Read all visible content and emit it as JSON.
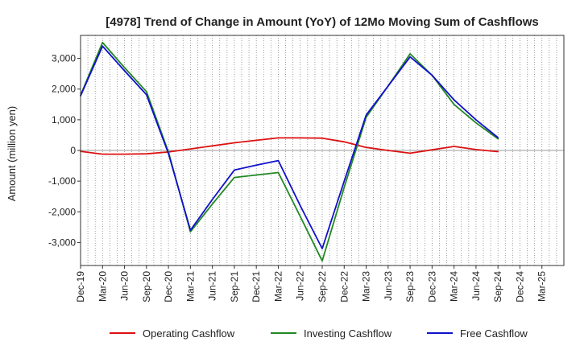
{
  "chart_data": {
    "type": "line",
    "title": "[4978]  Trend of Change in Amount (YoY) of 12Mo Moving Sum of Cashflows",
    "xlabel": "",
    "ylabel": "Amount (million yen)",
    "ylim": [
      -3750,
      3750
    ],
    "yticks": [
      -3000,
      -2000,
      -1000,
      0,
      1000,
      2000,
      3000
    ],
    "ytick_labels": [
      "-3,000",
      "-2,000",
      "-1,000",
      "0",
      "1,000",
      "2,000",
      "3,000"
    ],
    "x_months": 66,
    "x_ticks": [
      {
        "label": "Dec-19",
        "month": 0
      },
      {
        "label": "Mar-20",
        "month": 3
      },
      {
        "label": "Jun-20",
        "month": 6
      },
      {
        "label": "Sep-20",
        "month": 9
      },
      {
        "label": "Dec-20",
        "month": 12
      },
      {
        "label": "Mar-21",
        "month": 15
      },
      {
        "label": "Jun-21",
        "month": 18
      },
      {
        "label": "Sep-21",
        "month": 21
      },
      {
        "label": "Dec-21",
        "month": 24
      },
      {
        "label": "Mar-22",
        "month": 27
      },
      {
        "label": "Jun-22",
        "month": 30
      },
      {
        "label": "Sep-22",
        "month": 33
      },
      {
        "label": "Dec-22",
        "month": 36
      },
      {
        "label": "Mar-23",
        "month": 39
      },
      {
        "label": "Jun-23",
        "month": 42
      },
      {
        "label": "Sep-23",
        "month": 45
      },
      {
        "label": "Dec-23",
        "month": 48
      },
      {
        "label": "Mar-24",
        "month": 51
      },
      {
        "label": "Jun-24",
        "month": 54
      },
      {
        "label": "Sep-24",
        "month": 57
      },
      {
        "label": "Dec-24",
        "month": 60
      },
      {
        "label": "Mar-25",
        "month": 63
      }
    ],
    "grid": "vertical-dotted-monthly",
    "zero_line": true,
    "series": [
      {
        "name": "Operating Cashflow",
        "color": "#dd1111",
        "points": [
          [
            0,
            -30
          ],
          [
            3,
            -120
          ],
          [
            6,
            -120
          ],
          [
            9,
            -110
          ],
          [
            12,
            -50
          ],
          [
            15,
            50
          ],
          [
            18,
            150
          ],
          [
            21,
            250
          ],
          [
            24,
            330
          ],
          [
            27,
            410
          ],
          [
            30,
            410
          ],
          [
            33,
            400
          ],
          [
            36,
            280
          ],
          [
            39,
            100
          ],
          [
            42,
            0
          ],
          [
            45,
            -90
          ],
          [
            48,
            20
          ],
          [
            51,
            130
          ],
          [
            54,
            30
          ],
          [
            57,
            -40
          ]
        ]
      },
      {
        "name": "Investing Cashflow",
        "color": "#228822",
        "points": [
          [
            0,
            1800
          ],
          [
            3,
            3520
          ],
          [
            6,
            2700
          ],
          [
            9,
            1920
          ],
          [
            12,
            -50
          ],
          [
            15,
            -2650
          ],
          [
            18,
            -1750
          ],
          [
            21,
            -880
          ],
          [
            24,
            -800
          ],
          [
            27,
            -720
          ],
          [
            30,
            -2150
          ],
          [
            33,
            -3600
          ],
          [
            36,
            -1200
          ],
          [
            39,
            1080
          ],
          [
            42,
            2100
          ],
          [
            45,
            3150
          ],
          [
            48,
            2450
          ],
          [
            51,
            1500
          ],
          [
            54,
            900
          ],
          [
            57,
            380
          ]
        ]
      },
      {
        "name": "Free Cashflow",
        "color": "#1111cc",
        "points": [
          [
            0,
            1780
          ],
          [
            3,
            3400
          ],
          [
            6,
            2600
          ],
          [
            9,
            1820
          ],
          [
            12,
            -100
          ],
          [
            15,
            -2600
          ],
          [
            18,
            -1600
          ],
          [
            21,
            -640
          ],
          [
            24,
            -480
          ],
          [
            27,
            -330
          ],
          [
            30,
            -1800
          ],
          [
            33,
            -3200
          ],
          [
            36,
            -1000
          ],
          [
            39,
            1150
          ],
          [
            42,
            2100
          ],
          [
            45,
            3050
          ],
          [
            48,
            2450
          ],
          [
            51,
            1650
          ],
          [
            54,
            1000
          ],
          [
            57,
            420
          ]
        ]
      }
    ],
    "legend": {
      "position": "bottom-center"
    }
  }
}
